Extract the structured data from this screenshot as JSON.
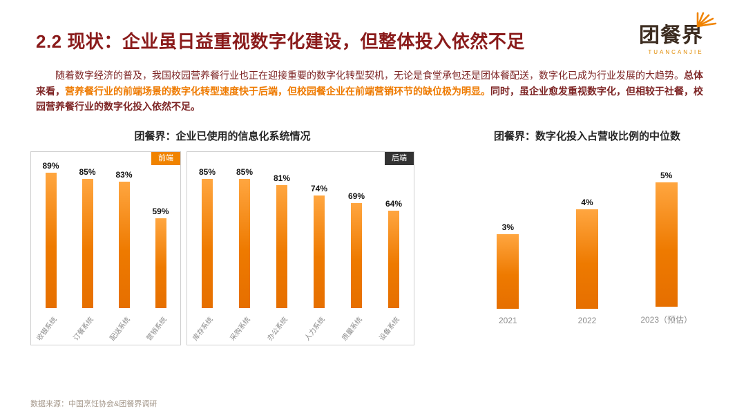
{
  "page": {
    "title": "2.2 现状：企业虽日益重视数字化建设，但整体投入依然不足",
    "logo": {
      "name": "团餐界",
      "subtitle": "TUANCANJIE"
    },
    "paragraph": {
      "runs": [
        {
          "style": "normal",
          "text": "随着数字经济的普及，我国校园营养餐行业也正在迎接重要的数字化转型契机，无论是食堂承包还是团体餐配送，数字化已成为行业发展的大趋势。"
        },
        {
          "style": "bold",
          "text": "总体来看，"
        },
        {
          "style": "highlight",
          "text": "营养餐行业的前端场景的数字化转型速度快于后端，但校园餐企业在前端营销环节的缺位极为明显。"
        },
        {
          "style": "bold",
          "text": "同时，虽企业愈发重视数字化，但相较于社餐，校园营养餐行业的数字化投入依然不足。"
        }
      ]
    },
    "source": "数据来源：中国烹饪协会&团餐界调研"
  },
  "colors": {
    "title_maroon": "#8a1b1b",
    "body_maroon": "#7d2424",
    "accent_orange": "#f08300",
    "bar_orange": "#ee7a00",
    "badge_dark": "#333333",
    "axis_label_gray": "#8c8c8c"
  },
  "chart_data": [
    {
      "type": "bar",
      "title": "团餐界：企业已使用的信息化系统情况",
      "unit": "%",
      "ylim": [
        0,
        100
      ],
      "grid": false,
      "legend": "none",
      "groups": [
        {
          "label": "前端",
          "categories": [
            "收银系统",
            "订餐系统",
            "配送系统",
            "营销系统"
          ],
          "values": [
            89,
            85,
            83,
            59
          ]
        },
        {
          "label": "后端",
          "categories": [
            "库存系统",
            "采购系统",
            "办公系统",
            "人力系统",
            "质量系统",
            "设备系统"
          ],
          "values": [
            85,
            85,
            81,
            74,
            69,
            64
          ]
        }
      ]
    },
    {
      "type": "bar",
      "title": "团餐界：数字化投入占营收比例的中位数",
      "unit": "%",
      "ylim": [
        0,
        6
      ],
      "grid": false,
      "legend": "none",
      "categories": [
        "2021",
        "2022",
        "2023（预估）"
      ],
      "values": [
        3,
        4,
        5
      ]
    }
  ]
}
